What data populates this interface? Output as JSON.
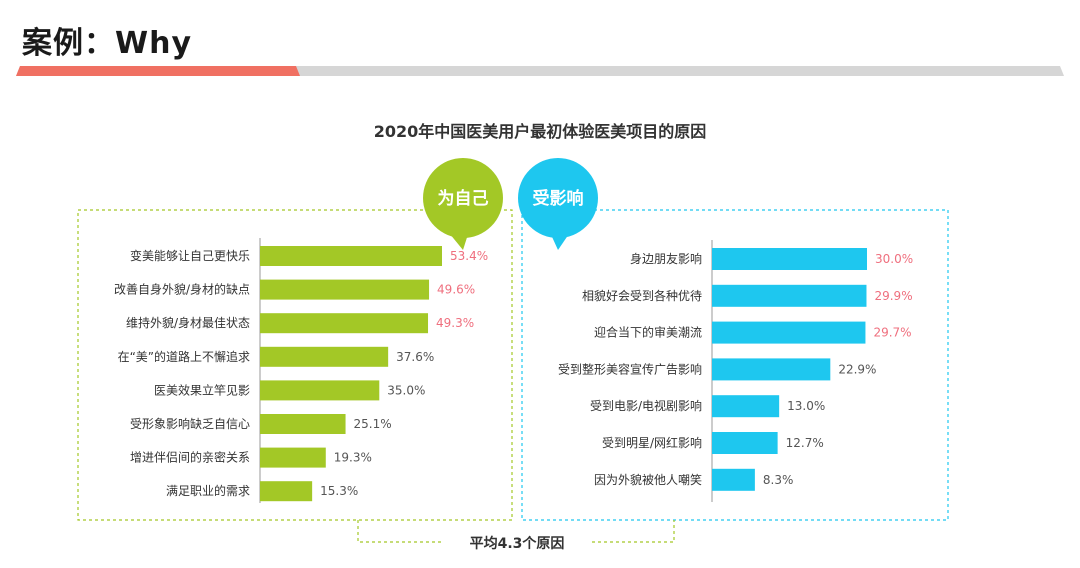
{
  "slide": {
    "title": "案例：Why"
  },
  "colors": {
    "green": "#a3c826",
    "blue": "#1ec7ef",
    "highlight_value": "#ef6f7e",
    "normal_value": "#555555",
    "title_accent": "#f07062",
    "title_gray": "#d6d6d6"
  },
  "chart_data": [
    {
      "type": "bar",
      "orientation": "horizontal",
      "title": "2020年中国医美用户最初体验医美项目的原因",
      "group_label": "为自己",
      "categories": [
        "变美能够让自己更快乐",
        "改善自身外貌/身材的缺点",
        "维持外貌/身材最佳状态",
        "在“美”的道路上不懈追求",
        "医美效果立竿见影",
        "受形象影响缺乏自信心",
        "增进伴侣间的亲密关系",
        "满足职业的需求"
      ],
      "values": [
        53.4,
        49.6,
        49.3,
        37.6,
        35.0,
        25.1,
        19.3,
        15.3
      ],
      "labels": [
        "53.4%",
        "49.6%",
        "49.3%",
        "37.6%",
        "35.0%",
        "25.1%",
        "19.3%",
        "15.3%"
      ],
      "highlighted": [
        true,
        true,
        true,
        false,
        false,
        false,
        false,
        false
      ],
      "unit": "%"
    },
    {
      "type": "bar",
      "orientation": "horizontal",
      "title": "2020年中国医美用户最初体验医美项目的原因",
      "group_label": "受影响",
      "categories": [
        "身边朋友影响",
        "相貌好会受到各种优待",
        "迎合当下的审美潮流",
        "受到整形美容宣传广告影响",
        "受到电影/电视剧影响",
        "受到明星/网红影响",
        "因为外貌被他人嘲笑"
      ],
      "values": [
        30.0,
        29.9,
        29.7,
        22.9,
        13.0,
        12.7,
        8.3
      ],
      "labels": [
        "30.0%",
        "29.9%",
        "29.7%",
        "22.9%",
        "13.0%",
        "12.7%",
        "8.3%"
      ],
      "highlighted": [
        true,
        true,
        true,
        false,
        false,
        false,
        false
      ],
      "unit": "%"
    }
  ],
  "footer": {
    "average_label": "平均4.3个原因"
  }
}
